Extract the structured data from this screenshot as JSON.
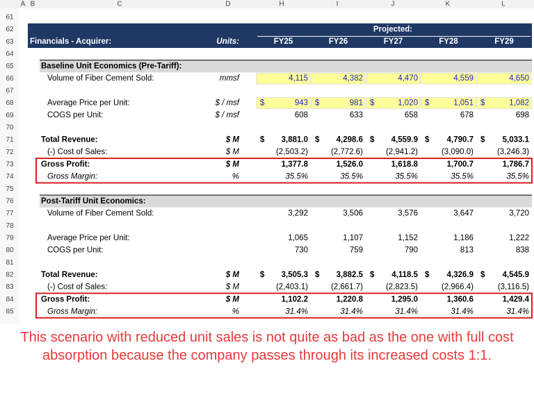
{
  "column_headers": [
    "A",
    "B",
    "C",
    "D",
    "H",
    "I",
    "J",
    "K",
    "L"
  ],
  "rows": [
    {
      "number": 61
    },
    {
      "number": 62,
      "projected": "Projected:"
    },
    {
      "number": 63,
      "label": "Financials - Acquirer:",
      "units": "Units:",
      "values": [
        "FY25",
        "FY26",
        "FY27",
        "FY28",
        "FY29"
      ]
    },
    {
      "number": 64
    },
    {
      "number": 65,
      "label": "Baseline Unit Economics (Pre-Tariff):"
    },
    {
      "number": 66,
      "label": "Volume of Fiber Cement Sold:",
      "units": "mmsf",
      "values": [
        "4,115",
        "4,382",
        "4,470",
        "4,559",
        "4,650"
      ]
    },
    {
      "number": 67
    },
    {
      "number": 68,
      "label": "Average Price per Unit:",
      "units": "$ / msf",
      "currency": "$",
      "values": [
        "943",
        "981",
        "1,020",
        "1,051",
        "1,082"
      ]
    },
    {
      "number": 69,
      "label": "COGS per Unit:",
      "units": "$ / msf",
      "values": [
        "608",
        "633",
        "658",
        "678",
        "698"
      ]
    },
    {
      "number": 70
    },
    {
      "number": 71,
      "label": "Total Revenue:",
      "units": "$ M",
      "currency": "$",
      "values": [
        "3,881.0",
        "4,298.6",
        "4,559.9",
        "4,790.7",
        "5,033.1"
      ]
    },
    {
      "number": 72,
      "label": "(-) Cost of Sales:",
      "units": "$ M",
      "values": [
        "(2,503.2)",
        "(2,772.6)",
        "(2,941.2)",
        "(3,090.0)",
        "(3,246.3)"
      ]
    },
    {
      "number": 73,
      "label": "Gross Profit:",
      "units": "$ M",
      "values": [
        "1,377.8",
        "1,526.0",
        "1,618.8",
        "1,700.7",
        "1,786.7"
      ]
    },
    {
      "number": 74,
      "label": "Gross Margin:",
      "units": "%",
      "values": [
        "35.5%",
        "35.5%",
        "35.5%",
        "35.5%",
        "35.5%"
      ]
    },
    {
      "number": 75
    },
    {
      "number": 76,
      "label": "Post-Tariff Unit Economics:"
    },
    {
      "number": 77,
      "label": "Volume of Fiber Cement Sold:",
      "values": [
        "3,292",
        "3,506",
        "3,576",
        "3,647",
        "3,720"
      ]
    },
    {
      "number": 78
    },
    {
      "number": 79,
      "label": "Average Price per Unit:",
      "values": [
        "1,065",
        "1,107",
        "1,152",
        "1,186",
        "1,222"
      ]
    },
    {
      "number": 80,
      "label": "COGS per Unit:",
      "values": [
        "730",
        "759",
        "790",
        "813",
        "838"
      ]
    },
    {
      "number": 81
    },
    {
      "number": 82,
      "label": "Total Revenue:",
      "units": "$ M",
      "currency": "$",
      "values": [
        "3,505.3",
        "3,882.5",
        "4,118.5",
        "4,326.9",
        "4,545.9"
      ]
    },
    {
      "number": 83,
      "label": "(-) Cost of Sales:",
      "units": "$ M",
      "values": [
        "(2,403.1)",
        "(2,661.7)",
        "(2,823.5)",
        "(2,966.4)",
        "(3,116.5)"
      ]
    },
    {
      "number": 84,
      "label": "Gross Profit:",
      "units": "$ M",
      "values": [
        "1,102.2",
        "1,220.8",
        "1,295.0",
        "1,360.6",
        "1,429.4"
      ]
    },
    {
      "number": 85,
      "label": "Gross Margin:",
      "units": "%",
      "values": [
        "31.4%",
        "31.4%",
        "31.4%",
        "31.4%",
        "31.4%"
      ]
    }
  ],
  "caption": "This scenario with reduced unit sales is not quite as bad as the one with full cost absorption because the company passes through its increased costs 1:1."
}
